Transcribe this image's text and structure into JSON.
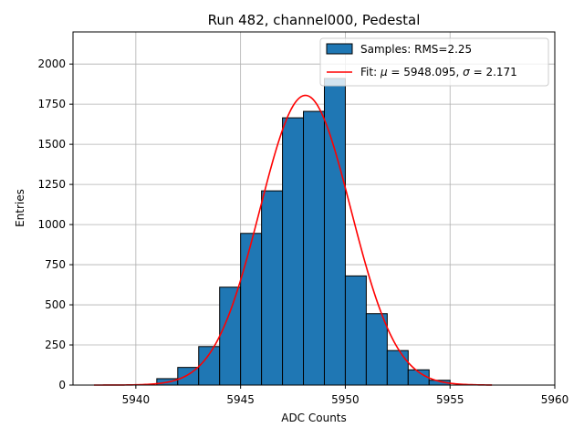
{
  "chart_data": {
    "type": "bar",
    "title": "Run 482, channel000, Pedestal",
    "xlabel": "ADC Counts",
    "ylabel": "Entries",
    "xlim": [
      5937,
      5960
    ],
    "ylim": [
      0,
      2200
    ],
    "xticks": [
      5940,
      5945,
      5950,
      5955,
      5960
    ],
    "xtick_labels": [
      "5940",
      "5945",
      "5950",
      "5955",
      "5960"
    ],
    "yticks": [
      0,
      250,
      500,
      750,
      1000,
      1250,
      1500,
      1750,
      2000
    ],
    "ytick_labels": [
      "0",
      "250",
      "500",
      "750",
      "1000",
      "1250",
      "1500",
      "1750",
      "2000"
    ],
    "grid": true,
    "legend_position": "top-right",
    "colors": {
      "bars": "#1f77b4",
      "bar_edge": "#000000",
      "fit": "#ff0000",
      "grid": "#b0b0b0"
    },
    "histogram": {
      "name": "Samples: RMS=2.25",
      "bin_edges": [
        5941,
        5942,
        5943,
        5944,
        5945,
        5946,
        5947,
        5948,
        5949,
        5950,
        5951,
        5952,
        5953,
        5954,
        5955
      ],
      "counts": [
        40,
        110,
        240,
        610,
        945,
        1210,
        1665,
        1705,
        1910,
        680,
        445,
        215,
        95,
        30
      ]
    },
    "fit": {
      "name": "Fit: μ = 5948.095, σ = 2.171",
      "name_prefix": "Fit: ",
      "mu_symbol": "μ",
      "mu_text": " = 5948.095, ",
      "sigma_symbol": "σ",
      "sigma_text": " = 2.171",
      "mu": 5948.095,
      "sigma": 2.171,
      "amplitude": 1805,
      "x_range": [
        5938,
        5957
      ]
    }
  }
}
